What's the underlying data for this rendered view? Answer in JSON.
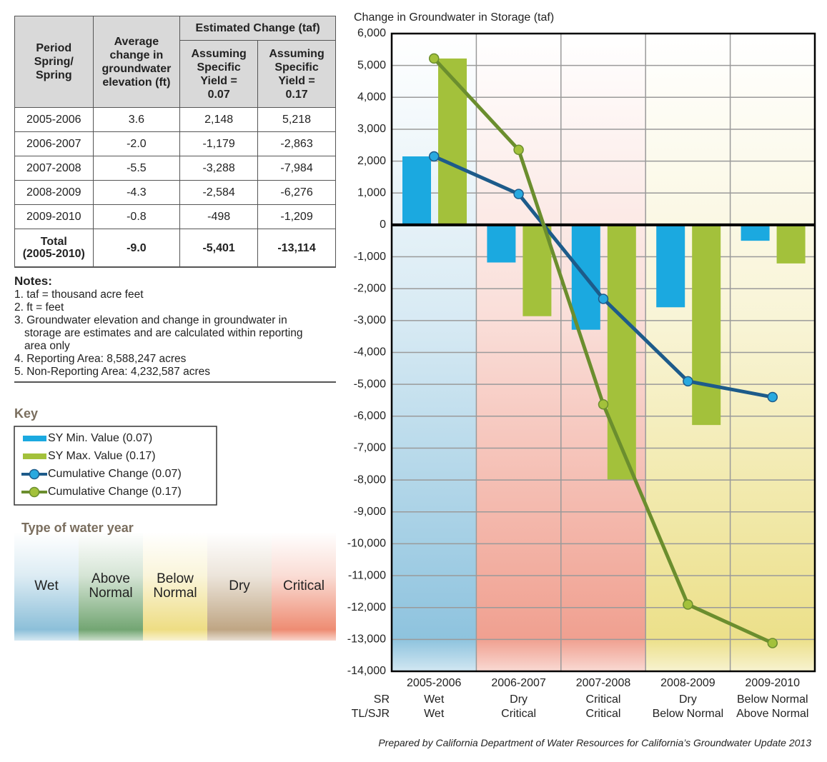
{
  "chart_data": {
    "type": "bar",
    "y_axis_title": "Change in Groundwater in Storage (taf)",
    "categories": [
      "2005-2006",
      "2006-2007",
      "2007-2008",
      "2008-2009",
      "2009-2010"
    ],
    "sr_labels": {
      "label": "SR",
      "values": [
        "Wet",
        "Dry",
        "Critical",
        "Dry",
        "Below Normal"
      ]
    },
    "tlsjr_labels": {
      "label": "TL/SJR",
      "values": [
        "Wet",
        "Critical",
        "Critical",
        "Below Normal",
        "Above Normal"
      ]
    },
    "series": [
      {
        "name": "SY Min. Value (0.07)",
        "type": "bar",
        "color": "#1ba9e0",
        "values": [
          2148,
          -1179,
          -3288,
          -2584,
          -498
        ]
      },
      {
        "name": "SY Max. Value (0.17)",
        "type": "bar",
        "color": "#a3c13b",
        "values": [
          5218,
          -2863,
          -7984,
          -6276,
          -1209
        ]
      },
      {
        "name": "Cumulative Change (0.07)",
        "type": "line",
        "color": "#1d5b8a",
        "marker_color": "#29a9df",
        "values": [
          2148,
          969,
          -2319,
          -4903,
          -5401
        ]
      },
      {
        "name": "Cumulative Change (0.17)",
        "type": "line",
        "color": "#6b8e2e",
        "marker_color": "#a3c13b",
        "values": [
          5218,
          2355,
          -5629,
          -11905,
          -13114
        ]
      }
    ],
    "ylim": [
      -14000,
      6000
    ],
    "yticks": [
      {
        "value": 6000,
        "label": "6,000"
      },
      {
        "value": 5000,
        "label": "5,000"
      },
      {
        "value": 4000,
        "label": "4,000"
      },
      {
        "value": 3000,
        "label": "3,000"
      },
      {
        "value": 2000,
        "label": "2,000"
      },
      {
        "value": 1000,
        "label": "1,000"
      },
      0,
      {
        "value": -1000,
        "label": "-1,000"
      },
      {
        "value": -2000,
        "label": "-2,000"
      },
      {
        "value": -3000,
        "label": "-3,000"
      },
      {
        "value": -4000,
        "label": "-4,000"
      },
      {
        "value": -5000,
        "label": "-5,000"
      },
      {
        "value": -6000,
        "label": "-6,000"
      },
      {
        "value": -7000,
        "label": "-7,000"
      },
      {
        "value": -8000,
        "label": "-8,000"
      },
      {
        "value": -9000,
        "label": "-9,000"
      },
      {
        "value": -10000,
        "label": "-10,000"
      },
      {
        "value": -11000,
        "label": "-11,000"
      },
      {
        "value": -12000,
        "label": "-12,000"
      },
      {
        "value": -13000,
        "label": "-13,000"
      },
      {
        "value": -14000,
        "label": "-14,000"
      }
    ],
    "grid": true,
    "legend_title": "Key"
  },
  "table": {
    "header_group": "Estimated Change (taf)",
    "columns": [
      "Period\nSpring/\nSpring",
      "Average\nchange in\ngroundwater\nelevation (ft)",
      "Assuming\nSpecific\nYield =\n0.07",
      "Assuming\nSpecific\nYield =\n0.17"
    ],
    "rows": [
      [
        "2005-2006",
        "3.6",
        "2,148",
        "5,218"
      ],
      [
        "2006-2007",
        "-2.0",
        "-1,179",
        "-2,863"
      ],
      [
        "2007-2008",
        "-5.5",
        "-3,288",
        "-7,984"
      ],
      [
        "2008-2009",
        "-4.3",
        "-2,584",
        "-6,276"
      ],
      [
        "2009-2010",
        "-0.8",
        "-498",
        "-1,209"
      ]
    ],
    "total": [
      "Total\n(2005-2010)",
      "-9.0",
      "-5,401",
      "-13,114"
    ]
  },
  "notes": {
    "title": "Notes:",
    "items": [
      "1. taf = thousand acre feet",
      "2. ft = feet",
      "3. Groundwater elevation and change in groundwater in storage are estimates and are calculated within reporting area only",
      "4. Reporting Area: 8,588,247 acres",
      "5. Non-Reporting Area: 4,232,587 acres"
    ]
  },
  "water_year": {
    "title": "Type of water year",
    "types": [
      "Wet",
      "Above\nNormal",
      "Below\nNormal",
      "Dry",
      "Critical"
    ]
  },
  "footer": "Prepared by California Department of Water Resources for California’s Groundwater Update 2013"
}
